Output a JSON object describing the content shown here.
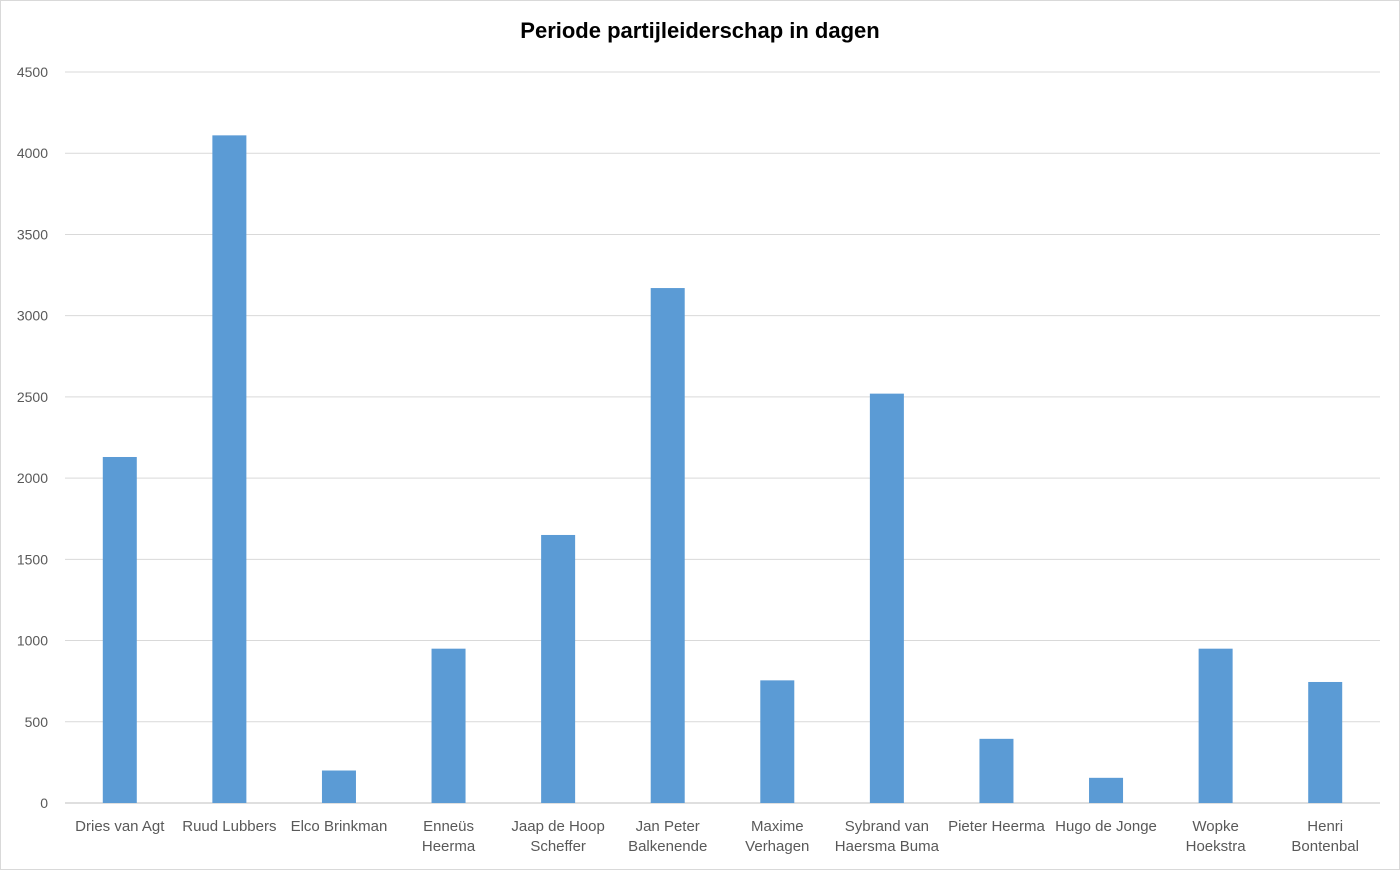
{
  "chart_data": {
    "type": "bar",
    "title": "Periode partijleiderschap in dagen",
    "xlabel": "",
    "ylabel": "",
    "ylim": [
      0,
      4500
    ],
    "yticks": [
      0,
      500,
      1000,
      1500,
      2000,
      2500,
      3000,
      3500,
      4000,
      4500
    ],
    "grid": true,
    "legend": "none",
    "bar_color": "#5b9bd5",
    "categories": [
      [
        "Dries van Agt"
      ],
      [
        "Ruud Lubbers"
      ],
      [
        "Elco Brinkman"
      ],
      [
        "Enneüs",
        "Heerma"
      ],
      [
        "Jaap de Hoop",
        "Scheffer"
      ],
      [
        "Jan Peter",
        "Balkenende"
      ],
      [
        "Maxime",
        "Verhagen"
      ],
      [
        "Sybrand van",
        "Haersma Buma"
      ],
      [
        "Pieter Heerma"
      ],
      [
        "Hugo de Jonge"
      ],
      [
        "Wopke",
        "Hoekstra"
      ],
      [
        "Henri",
        "Bontenbal"
      ]
    ],
    "values": [
      2130,
      4110,
      200,
      950,
      1650,
      3170,
      755,
      2520,
      395,
      155,
      950,
      745
    ]
  }
}
